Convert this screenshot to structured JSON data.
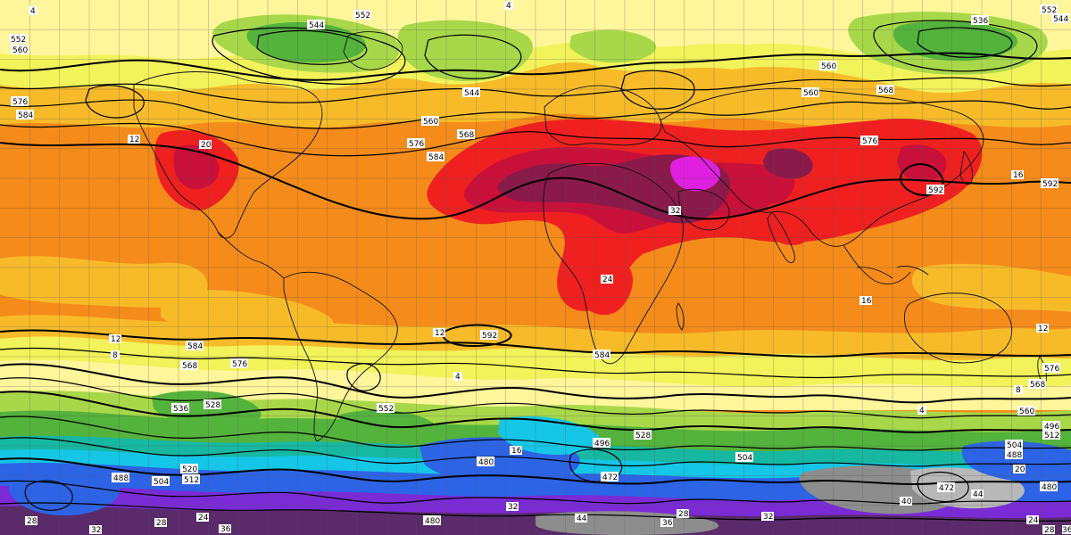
{
  "map": {
    "colors": {
      "band_s_deep": "#5a2a6a",
      "band_s_violet": "#7a2bd6",
      "band_s_blue": "#2d64e6",
      "band_s_cyan": "#15c6e6",
      "band_s_teal": "#17b8a2",
      "band_green": "#54b33c",
      "band_lightgreen": "#a8d84a",
      "band_yellow": "#f2f25a",
      "band_paleyellow": "#fff59a",
      "band_amber": "#f7bb2a",
      "band_orange": "#f58b1a",
      "band_red": "#f02020",
      "band_crimson": "#c8103a",
      "band_maroon": "#8a1a4a",
      "band_magenta": "#e020e0",
      "band_gray": "#8d8d8d",
      "band_lightgray": "#b8b8b8",
      "contour": "#000000",
      "coast": "#111111",
      "grid": "#555555"
    },
    "contour_labels": [
      {
        "id": "lbl-552-a",
        "text": "552"
      },
      {
        "id": "lbl-552-b",
        "text": "552"
      },
      {
        "id": "lbl-552-c",
        "text": "552"
      },
      {
        "id": "lbl-552-d",
        "text": "552"
      },
      {
        "id": "lbl-544-a",
        "text": "544"
      },
      {
        "id": "lbl-544-b",
        "text": "544"
      },
      {
        "id": "lbl-544-c",
        "text": "544"
      },
      {
        "id": "lbl-560-a",
        "text": "560"
      },
      {
        "id": "lbl-560-b",
        "text": "560"
      },
      {
        "id": "lbl-560-c",
        "text": "560"
      },
      {
        "id": "lbl-560-d",
        "text": "560"
      },
      {
        "id": "lbl-560-e",
        "text": "560"
      },
      {
        "id": "lbl-568-a",
        "text": "568"
      },
      {
        "id": "lbl-568-b",
        "text": "568"
      },
      {
        "id": "lbl-568-c",
        "text": "568"
      },
      {
        "id": "lbl-568-d",
        "text": "568"
      },
      {
        "id": "lbl-576-a",
        "text": "576"
      },
      {
        "id": "lbl-576-b",
        "text": "576"
      },
      {
        "id": "lbl-576-c",
        "text": "576"
      },
      {
        "id": "lbl-576-d",
        "text": "576"
      },
      {
        "id": "lbl-576-e",
        "text": "576"
      },
      {
        "id": "lbl-584-a",
        "text": "584"
      },
      {
        "id": "lbl-584-b",
        "text": "584"
      },
      {
        "id": "lbl-584-c",
        "text": "584"
      },
      {
        "id": "lbl-584-d",
        "text": "584"
      },
      {
        "id": "lbl-592-a",
        "text": "592"
      },
      {
        "id": "lbl-592-b",
        "text": "592"
      },
      {
        "id": "lbl-592-c",
        "text": "592"
      },
      {
        "id": "lbl-536-a",
        "text": "536"
      },
      {
        "id": "lbl-536-b",
        "text": "536"
      },
      {
        "id": "lbl-528-a",
        "text": "528"
      },
      {
        "id": "lbl-528-b",
        "text": "528"
      },
      {
        "id": "lbl-520-a",
        "text": "520"
      },
      {
        "id": "lbl-512-a",
        "text": "512"
      },
      {
        "id": "lbl-512-b",
        "text": "512"
      },
      {
        "id": "lbl-504-a",
        "text": "504"
      },
      {
        "id": "lbl-504-b",
        "text": "504"
      },
      {
        "id": "lbl-504-c",
        "text": "504"
      },
      {
        "id": "lbl-496-a",
        "text": "496"
      },
      {
        "id": "lbl-496-b",
        "text": "496"
      },
      {
        "id": "lbl-488-a",
        "text": "488"
      },
      {
        "id": "lbl-488-b",
        "text": "488"
      },
      {
        "id": "lbl-480-a",
        "text": "480"
      },
      {
        "id": "lbl-480-b",
        "text": "480"
      },
      {
        "id": "lbl-480-c",
        "text": "480"
      },
      {
        "id": "lbl-472-a",
        "text": "472"
      },
      {
        "id": "lbl-472-b",
        "text": "472"
      },
      {
        "id": "lbl-4-a",
        "text": "4"
      },
      {
        "id": "lbl-4-b",
        "text": "4"
      },
      {
        "id": "lbl-4-c",
        "text": "4"
      },
      {
        "id": "lbl-4-d",
        "text": "4"
      },
      {
        "id": "lbl-8-a",
        "text": "8"
      },
      {
        "id": "lbl-8-b",
        "text": "8"
      },
      {
        "id": "lbl-12-a",
        "text": "12"
      },
      {
        "id": "lbl-12-b",
        "text": "12"
      },
      {
        "id": "lbl-12-c",
        "text": "12"
      },
      {
        "id": "lbl-12-d",
        "text": "12"
      },
      {
        "id": "lbl-16-a",
        "text": "16"
      },
      {
        "id": "lbl-16-b",
        "text": "16"
      },
      {
        "id": "lbl-16-c",
        "text": "16"
      },
      {
        "id": "lbl-20-a",
        "text": "20"
      },
      {
        "id": "lbl-20-b",
        "text": "20"
      },
      {
        "id": "lbl-24-a",
        "text": "24"
      },
      {
        "id": "lbl-24-b",
        "text": "24"
      },
      {
        "id": "lbl-24-c",
        "text": "24"
      },
      {
        "id": "lbl-28-a",
        "text": "28"
      },
      {
        "id": "lbl-28-b",
        "text": "28"
      },
      {
        "id": "lbl-28-c",
        "text": "28"
      },
      {
        "id": "lbl-28-d",
        "text": "28"
      },
      {
        "id": "lbl-32-a",
        "text": "32"
      },
      {
        "id": "lbl-32-b",
        "text": "32"
      },
      {
        "id": "lbl-32-c",
        "text": "32"
      },
      {
        "id": "lbl-32-d",
        "text": "32"
      },
      {
        "id": "lbl-36-a",
        "text": "36"
      },
      {
        "id": "lbl-36-b",
        "text": "36"
      },
      {
        "id": "lbl-36-c",
        "text": "36"
      },
      {
        "id": "lbl-40-a",
        "text": "40"
      },
      {
        "id": "lbl-44-a",
        "text": "44"
      },
      {
        "id": "lbl-44-b",
        "text": "44"
      }
    ]
  }
}
